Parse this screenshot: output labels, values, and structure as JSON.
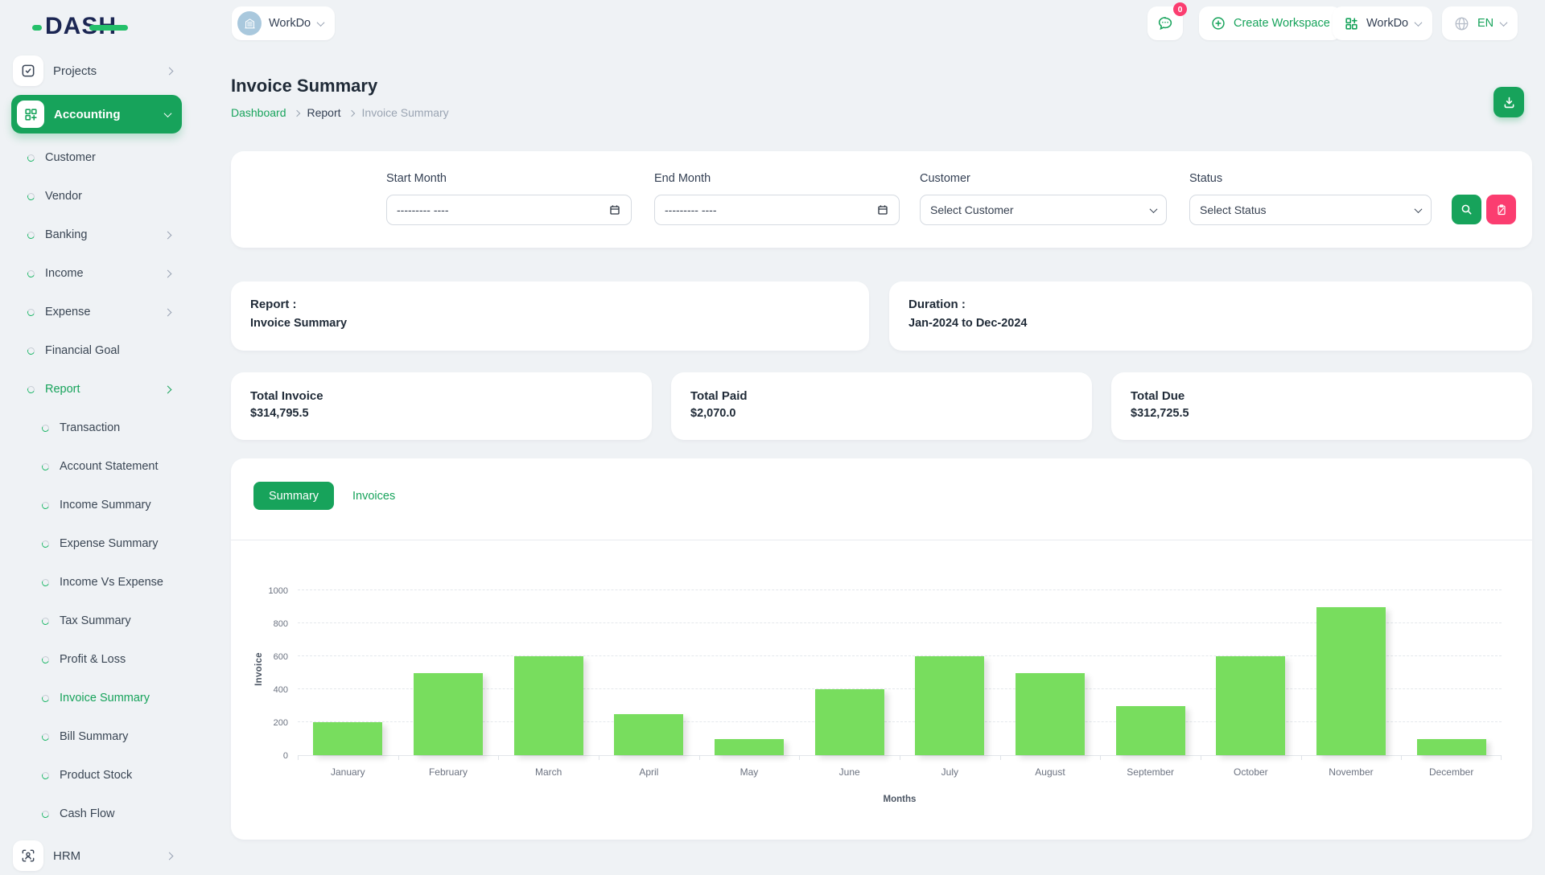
{
  "app": {
    "logo_text": "DASH"
  },
  "topbar": {
    "workspace": {
      "label": "WorkDo"
    },
    "chat": {
      "badge": "0"
    },
    "create_workspace": {
      "label": "Create Workspace"
    },
    "account": {
      "label": "WorkDo"
    },
    "language": {
      "label": "EN"
    }
  },
  "sidebar": {
    "projects": {
      "label": "Projects"
    },
    "accounting": {
      "label": "Accounting",
      "active": true
    },
    "accounting_items": [
      {
        "label": "Customer"
      },
      {
        "label": "Vendor"
      },
      {
        "label": "Banking",
        "chevron": true
      },
      {
        "label": "Income",
        "chevron": true
      },
      {
        "label": "Expense",
        "chevron": true
      },
      {
        "label": "Financial Goal"
      },
      {
        "label": "Report",
        "chevron": true,
        "active": true
      }
    ],
    "report_items": [
      {
        "label": "Transaction"
      },
      {
        "label": "Account Statement"
      },
      {
        "label": "Income Summary"
      },
      {
        "label": "Expense Summary"
      },
      {
        "label": "Income Vs Expense"
      },
      {
        "label": "Tax Summary"
      },
      {
        "label": "Profit & Loss"
      },
      {
        "label": "Invoice Summary",
        "active": true
      },
      {
        "label": "Bill Summary"
      },
      {
        "label": "Product Stock"
      },
      {
        "label": "Cash Flow"
      }
    ],
    "hrm": {
      "label": "HRM"
    }
  },
  "page": {
    "title": "Invoice Summary",
    "breadcrumb": [
      {
        "label": "Dashboard"
      },
      {
        "label": "Report"
      },
      {
        "label": "Invoice Summary"
      }
    ]
  },
  "filters": {
    "start_month": {
      "label": "Start Month",
      "placeholder": "--------- ----"
    },
    "end_month": {
      "label": "End Month",
      "placeholder": "--------- ----"
    },
    "customer": {
      "label": "Customer",
      "value": "Select Customer"
    },
    "status": {
      "label": "Status",
      "value": "Select Status"
    }
  },
  "info": {
    "report": {
      "title": "Report :",
      "value": "Invoice Summary"
    },
    "duration": {
      "title": "Duration :",
      "value": "Jan-2024 to Dec-2024"
    }
  },
  "stats": [
    {
      "label": "Total Invoice",
      "value": "$314,795.5"
    },
    {
      "label": "Total Paid",
      "value": "$2,070.0"
    },
    {
      "label": "Total Due",
      "value": "$312,725.5"
    }
  ],
  "tabs": {
    "summary": "Summary",
    "invoices": "Invoices"
  },
  "chart_data": {
    "type": "bar",
    "title": "",
    "categories": [
      "January",
      "February",
      "March",
      "April",
      "May",
      "June",
      "July",
      "August",
      "September",
      "October",
      "November",
      "December"
    ],
    "values": [
      200,
      500,
      600,
      250,
      100,
      400,
      600,
      500,
      300,
      600,
      900,
      100
    ],
    "xlabel": "Months",
    "ylabel": "Invoice",
    "ylim": [
      0,
      1000
    ],
    "ytick_step": 200,
    "bar_color": "#78dd5e",
    "grid": true,
    "legend": "none"
  },
  "colors": {
    "primary": "#17a35b",
    "danger": "#fb3d70",
    "bar_green": "#78dd5e",
    "logo_navy": "#1b2653"
  },
  "icons": [
    "chat-bubble",
    "plus-circle",
    "grid",
    "globe",
    "download",
    "calendar",
    "search",
    "reset-clipboard",
    "checkbox",
    "grid-plus",
    "building",
    "user-focus",
    "chevron"
  ]
}
